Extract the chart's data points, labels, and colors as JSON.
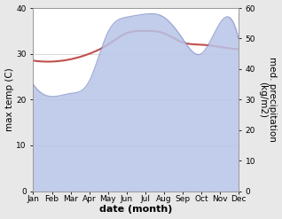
{
  "months": [
    "Jan",
    "Feb",
    "Mar",
    "Apr",
    "May",
    "Jun",
    "Jul",
    "Aug",
    "Sep",
    "Oct",
    "Nov",
    "Dec"
  ],
  "month_indices": [
    0,
    1,
    2,
    3,
    4,
    5,
    6,
    7,
    8,
    9,
    10,
    11
  ],
  "temp_max": [
    28.5,
    28.3,
    28.8,
    30.0,
    32.0,
    34.5,
    35.0,
    34.5,
    32.5,
    32.0,
    31.5,
    31.0
  ],
  "precipitation": [
    35.0,
    31.0,
    32.0,
    36.0,
    52.0,
    57.0,
    58.0,
    57.0,
    50.0,
    45.0,
    55.0,
    50.0
  ],
  "temp_color": "#c0504d",
  "precip_color_fill": "#b8c4e8",
  "precip_color_line": "#8896cc",
  "temp_ylim": [
    0,
    40
  ],
  "precip_ylim": [
    0,
    60
  ],
  "xlabel": "date (month)",
  "ylabel_left": "max temp (C)",
  "ylabel_right": "med. precipitation\n(kg/m2)",
  "bg_color": "#e8e8e8",
  "plot_bg_color": "#ffffff",
  "temp_linewidth": 1.5,
  "xlabel_fontsize": 8,
  "ylabel_fontsize": 7.5,
  "tick_fontsize": 6.5
}
